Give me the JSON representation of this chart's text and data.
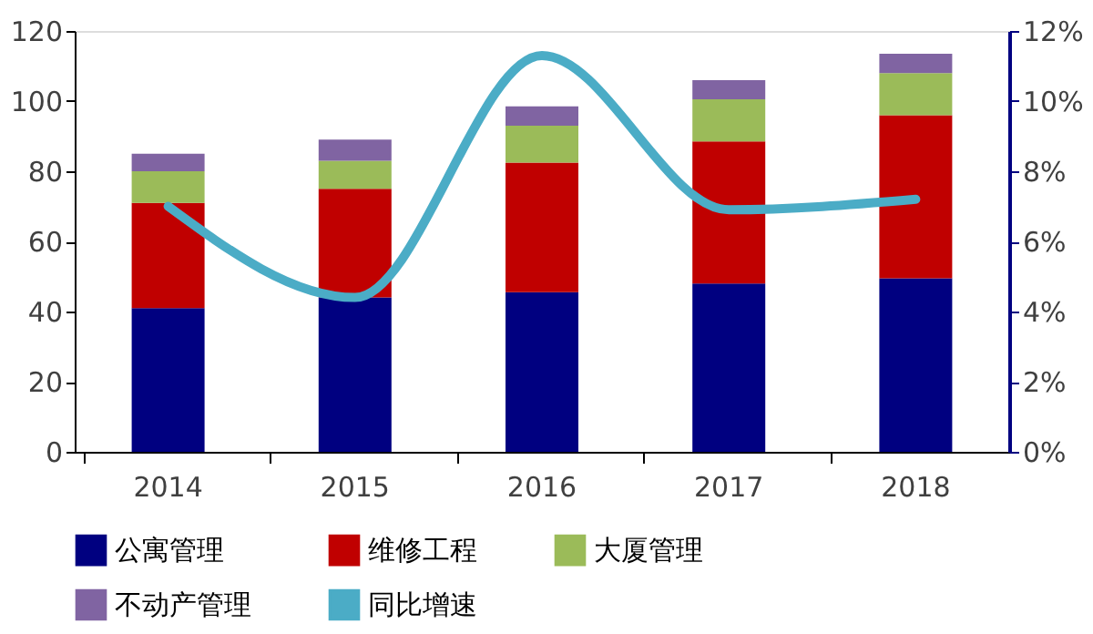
{
  "chart_data": {
    "type": "bar",
    "stacked": true,
    "categories": [
      "2014",
      "2015",
      "2016",
      "2017",
      "2018"
    ],
    "series": [
      {
        "name": "公寓管理",
        "color": "#000080",
        "values": [
          41,
          44,
          45.5,
          48,
          49.5
        ]
      },
      {
        "name": "维修工程",
        "color": "#c00000",
        "values": [
          30,
          31,
          37,
          40.5,
          46.5
        ]
      },
      {
        "name": "大厦管理",
        "color": "#9bbb59",
        "values": [
          9,
          8,
          10.5,
          12,
          12
        ]
      },
      {
        "name": "不动产管理",
        "color": "#8064a2",
        "values": [
          5,
          6,
          5.5,
          5.5,
          5.5
        ]
      },
      {
        "name": "同比增速",
        "type": "line",
        "axis": "y2",
        "color": "#4bacc6",
        "values": [
          7.0,
          4.4,
          11.3,
          6.9,
          7.2
        ]
      }
    ],
    "ylim": [
      0,
      120
    ],
    "yticks": [
      0,
      20,
      40,
      60,
      80,
      100,
      120
    ],
    "y2lim": [
      0,
      12
    ],
    "y2ticks": [
      {
        "value": 0,
        "label": "0%"
      },
      {
        "value": 2,
        "label": "2%"
      },
      {
        "value": 4,
        "label": "4%"
      },
      {
        "value": 6,
        "label": "6%"
      },
      {
        "value": 8,
        "label": "8%"
      },
      {
        "value": 10,
        "label": "10%"
      },
      {
        "value": 12,
        "label": "12%"
      }
    ],
    "grid": false,
    "legend": "bottom",
    "marker": "none",
    "line_style": "solid"
  }
}
